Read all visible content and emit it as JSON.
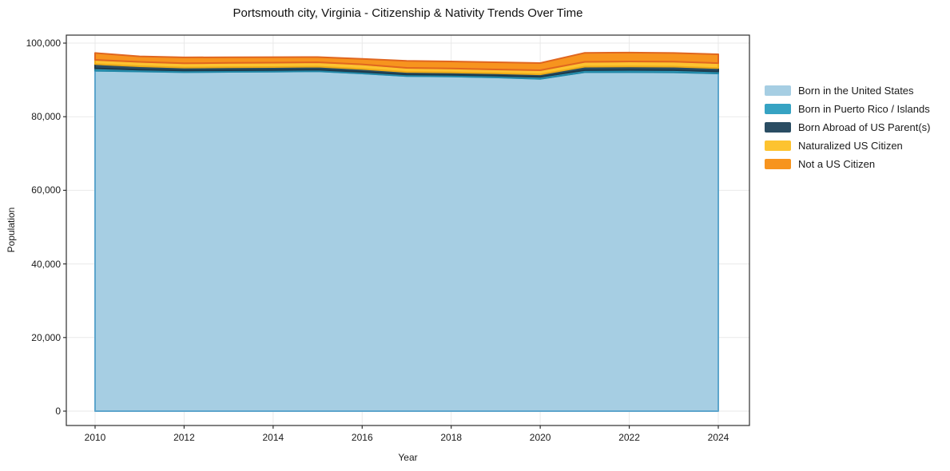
{
  "chart_data": {
    "type": "area",
    "stacked": true,
    "title": "Portsmouth city, Virginia - Citizenship & Nativity Trends Over Time",
    "xlabel": "Year",
    "ylabel": "Population",
    "grid": true,
    "legend_position": "right-outside",
    "x": [
      2010,
      2011,
      2012,
      2013,
      2014,
      2015,
      2016,
      2017,
      2018,
      2019,
      2020,
      2021,
      2022,
      2023,
      2024
    ],
    "xlim": [
      2009.35,
      2024.7
    ],
    "ylim": [
      -3900,
      102200
    ],
    "yticks": {
      "values": [
        0,
        20000,
        40000,
        60000,
        80000,
        100000
      ],
      "labels": [
        "0",
        "20,000",
        "40,000",
        "60,000",
        "80,000",
        "100,000"
      ]
    },
    "xticks": {
      "values": [
        2010,
        2012,
        2014,
        2016,
        2018,
        2020,
        2022,
        2024
      ],
      "labels": [
        "2010",
        "2012",
        "2014",
        "2016",
        "2018",
        "2020",
        "2022",
        "2024"
      ]
    },
    "series": [
      {
        "name": "Born in the United States",
        "fill": "#a6cee3",
        "edge": "#5da5cc",
        "values": [
          92500,
          92300,
          92100,
          92200,
          92250,
          92350,
          91750,
          91050,
          90950,
          90700,
          90300,
          92100,
          92100,
          92050,
          91750
        ]
      },
      {
        "name": "Born in Puerto Rico / Islands",
        "fill": "#36a3c3",
        "edge": "#2187a6",
        "values": [
          650,
          500,
          450,
          420,
          420,
          450,
          450,
          420,
          420,
          450,
          520,
          550,
          620,
          600,
          560
        ]
      },
      {
        "name": "Born Abroad of US Parent(s)",
        "fill": "#2a4d63",
        "edge": "#1d3a4b",
        "values": [
          1150,
          900,
          820,
          800,
          820,
          800,
          780,
          700,
          650,
          650,
          700,
          950,
          950,
          950,
          900
        ]
      },
      {
        "name": "Naturalized US Citizen",
        "fill": "#fdc330",
        "edge": "#edab19",
        "values": [
          1150,
          1200,
          1150,
          1200,
          1200,
          1200,
          1250,
          1100,
          1100,
          1050,
          1100,
          1300,
          1350,
          1350,
          1350
        ]
      },
      {
        "name": "Not a US Citizen",
        "fill": "#f7941e",
        "edge": "#e0661f",
        "values": [
          1850,
          1500,
          1600,
          1550,
          1500,
          1400,
          1500,
          1900,
          1900,
          1950,
          1950,
          2450,
          2400,
          2350,
          2400
        ]
      }
    ],
    "colors": {
      "plot_border": "#2e2e2e",
      "gridline": "#e9e9e9",
      "background": "#ffffff",
      "text": "#1a1a1a"
    }
  }
}
